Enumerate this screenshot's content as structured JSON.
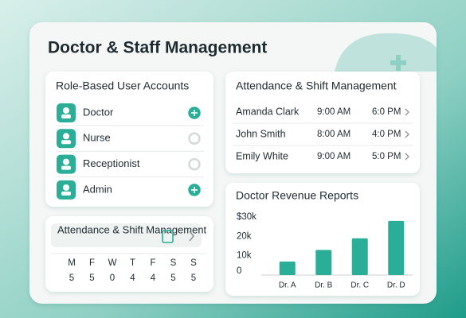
{
  "header": {
    "title": "Doctor & Staff Management"
  },
  "roles": {
    "title": "Role-Based User Accounts",
    "items": [
      {
        "label": "Doctor",
        "selected": true
      },
      {
        "label": "Nurse",
        "selected": false
      },
      {
        "label": "Receptionist",
        "selected": false
      },
      {
        "label": "Admin",
        "selected": true
      }
    ]
  },
  "attendance": {
    "title": "Attendance & Shift Management",
    "rows": [
      [
        "Amanda Clark",
        "9:00 AM",
        "6:0 PM"
      ],
      [
        "John Smith",
        "8:00 AM",
        "4:0 PM"
      ],
      [
        "Emily White",
        "9:00 AM",
        "5:0 PM"
      ]
    ]
  },
  "shift_widget": {
    "title": "Attendance & Shift Management",
    "days": [
      "M",
      "F",
      "W",
      "T",
      "F",
      "S",
      "S"
    ],
    "counts": [
      5,
      5,
      0,
      4,
      4,
      5,
      5
    ]
  },
  "chart_data": {
    "type": "bar",
    "title": "Doctor Revenue Reports",
    "categories": [
      "Dr. A",
      "Dr. B",
      "Dr. C",
      "Dr. D"
    ],
    "values": [
      7000,
      13000,
      19000,
      28000
    ],
    "color": "#2aae98",
    "ylim": [
      0,
      30000
    ],
    "yticks": [
      0,
      {
        "value": 10000,
        "label": "10k"
      },
      {
        "value": 20000,
        "label": "20k"
      },
      {
        "value": 30000,
        "label": "$30k"
      }
    ],
    "grid": false
  }
}
